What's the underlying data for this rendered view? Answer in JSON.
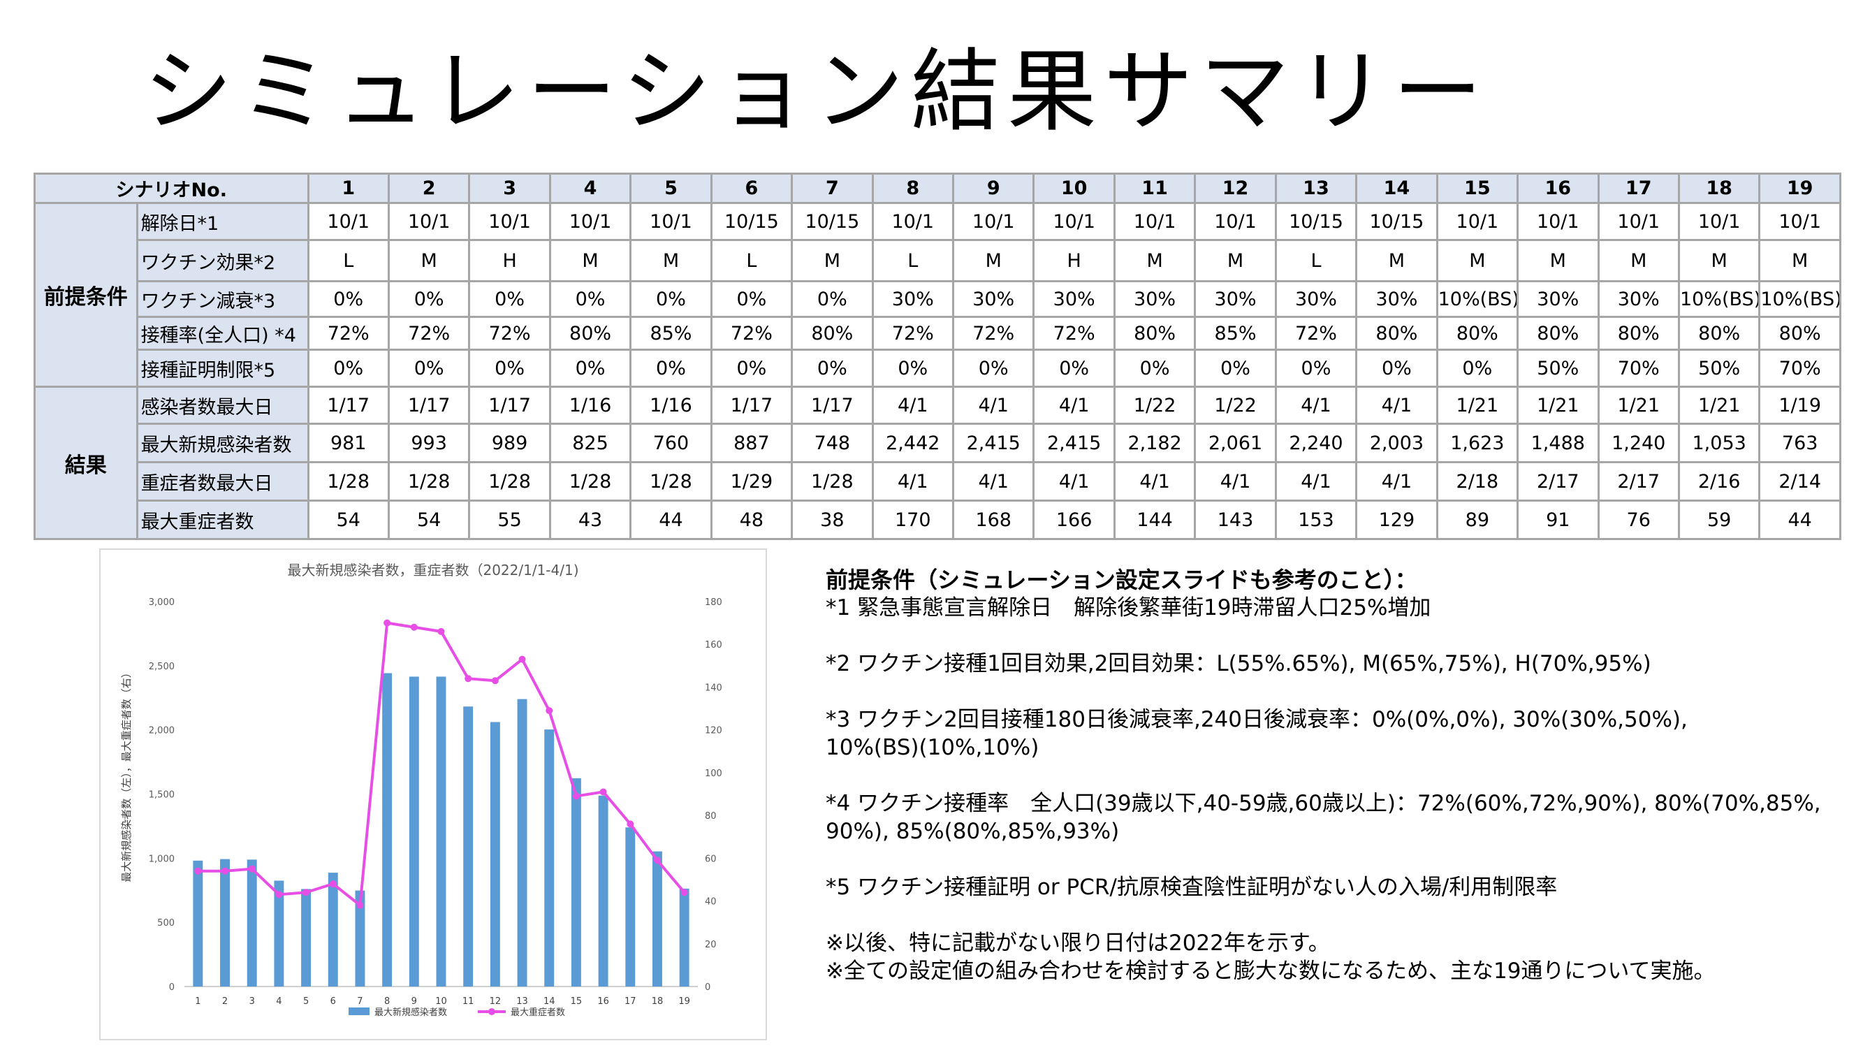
{
  "title": "シミュレーション結果サマリー",
  "table": {
    "header_label": "シナリオNo.",
    "scenarios": [
      "1",
      "2",
      "3",
      "4",
      "5",
      "6",
      "7",
      "8",
      "9",
      "10",
      "11",
      "12",
      "13",
      "14",
      "15",
      "16",
      "17",
      "18",
      "19"
    ],
    "groups": [
      {
        "name": "前提条件",
        "rows": [
          {
            "label": "解除日*1",
            "values": [
              "10/1",
              "10/1",
              "10/1",
              "10/1",
              "10/1",
              "10/15",
              "10/15",
              "10/1",
              "10/1",
              "10/1",
              "10/1",
              "10/1",
              "10/15",
              "10/15",
              "10/1",
              "10/1",
              "10/1",
              "10/1",
              "10/1"
            ]
          },
          {
            "label": "ワクチン効果*2",
            "values": [
              "L",
              "M",
              "H",
              "M",
              "M",
              "L",
              "M",
              "L",
              "M",
              "H",
              "M",
              "M",
              "L",
              "M",
              "M",
              "M",
              "M",
              "M",
              "M"
            ]
          },
          {
            "label": "ワクチン減衰*3",
            "values": [
              "0%",
              "0%",
              "0%",
              "0%",
              "0%",
              "0%",
              "0%",
              "30%",
              "30%",
              "30%",
              "30%",
              "30%",
              "30%",
              "30%",
              "10%(BS)",
              "30%",
              "30%",
              "10%(BS)",
              "10%(BS)"
            ]
          },
          {
            "label": "接種率(全人口) *4",
            "values": [
              "72%",
              "72%",
              "72%",
              "80%",
              "85%",
              "72%",
              "80%",
              "72%",
              "72%",
              "72%",
              "80%",
              "85%",
              "72%",
              "80%",
              "80%",
              "80%",
              "80%",
              "80%",
              "80%"
            ]
          },
          {
            "label": "接種証明制限*5",
            "values": [
              "0%",
              "0%",
              "0%",
              "0%",
              "0%",
              "0%",
              "0%",
              "0%",
              "0%",
              "0%",
              "0%",
              "0%",
              "0%",
              "0%",
              "0%",
              "50%",
              "70%",
              "50%",
              "70%"
            ]
          }
        ]
      },
      {
        "name": "結果",
        "rows": [
          {
            "label": "感染者数最大日",
            "values": [
              "1/17",
              "1/17",
              "1/17",
              "1/16",
              "1/16",
              "1/17",
              "1/17",
              "4/1",
              "4/1",
              "4/1",
              "1/22",
              "1/22",
              "4/1",
              "4/1",
              "1/21",
              "1/21",
              "1/21",
              "1/21",
              "1/19"
            ]
          },
          {
            "label": "最大新規感染者数",
            "values": [
              "981",
              "993",
              "989",
              "825",
              "760",
              "887",
              "748",
              "2,442",
              "2,415",
              "2,415",
              "2,182",
              "2,061",
              "2,240",
              "2,003",
              "1,623",
              "1,488",
              "1,240",
              "1,053",
              "763"
            ]
          },
          {
            "label": "重症者数最大日",
            "values": [
              "1/28",
              "1/28",
              "1/28",
              "1/28",
              "1/28",
              "1/29",
              "1/28",
              "4/1",
              "4/1",
              "4/1",
              "4/1",
              "4/1",
              "4/1",
              "4/1",
              "2/18",
              "2/17",
              "2/17",
              "2/16",
              "2/14"
            ]
          },
          {
            "label": "最大重症者数",
            "values": [
              "54",
              "54",
              "55",
              "43",
              "44",
              "48",
              "38",
              "170",
              "168",
              "166",
              "144",
              "143",
              "153",
              "129",
              "89",
              "91",
              "76",
              "59",
              "44"
            ]
          }
        ]
      }
    ]
  },
  "chart_data": {
    "type": "bar",
    "title": "最大新規感染者数，重症者数（2022/1/1-4/1)",
    "categories": [
      "1",
      "2",
      "3",
      "4",
      "5",
      "6",
      "7",
      "8",
      "9",
      "10",
      "11",
      "12",
      "13",
      "14",
      "15",
      "16",
      "17",
      "18",
      "19"
    ],
    "ylabel": "最大新規感染者数（左），最大重症者数（右）",
    "ylim": [
      0,
      3000
    ],
    "yticks": [
      "0",
      "500",
      "1,000",
      "1,500",
      "2,000",
      "2,500",
      "3,000"
    ],
    "y2lim": [
      0,
      180
    ],
    "y2ticks": [
      "0",
      "20",
      "40",
      "60",
      "80",
      "100",
      "120",
      "140",
      "160",
      "180"
    ],
    "series": [
      {
        "name": "最大新規感染者数",
        "type": "bar",
        "axis": "left",
        "color": "#5b9bd5",
        "values": [
          981,
          993,
          989,
          825,
          760,
          887,
          748,
          2442,
          2415,
          2415,
          2182,
          2061,
          2240,
          2003,
          1623,
          1488,
          1240,
          1053,
          763
        ]
      },
      {
        "name": "最大重症者数",
        "type": "line",
        "axis": "right",
        "color": "#e64ee6",
        "values": [
          54,
          54,
          55,
          43,
          44,
          48,
          38,
          170,
          168,
          166,
          144,
          143,
          153,
          129,
          89,
          91,
          76,
          59,
          44
        ]
      }
    ],
    "legend": "bottom",
    "grid": false
  },
  "notes": {
    "heading": "前提条件（シミュレーション設定スライドも参考のこと）：",
    "items": [
      "*1 緊急事態宣言解除日　解除後繁華街19時滞留人口25%増加",
      "*2 ワクチン接種1回目効果,2回目効果：L(55%.65%), M(65%,75%), H(70%,95%)",
      "*3 ワクチン2回目接種180日後減衰率,240日後減衰率：0%(0%,0%), 30%(30%,50%),\n10%(BS)(10%,10%)",
      "*4 ワクチン接種率　全人口(39歳以下,40-59歳,60歳以上)：72%(60%,72%,90%), 80%(70%,85%,\n90%), 85%(80%,85%,93%)",
      "*5 ワクチン接種証明 or PCR/抗原検査陰性証明がない人の入場/利用制限率"
    ],
    "footnotes": [
      "※以後、特に記載がない限り日付は2022年を示す。",
      "※全ての設定値の組み合わせを検討すると膨大な数になるため、主な19通りについて実施。"
    ]
  }
}
